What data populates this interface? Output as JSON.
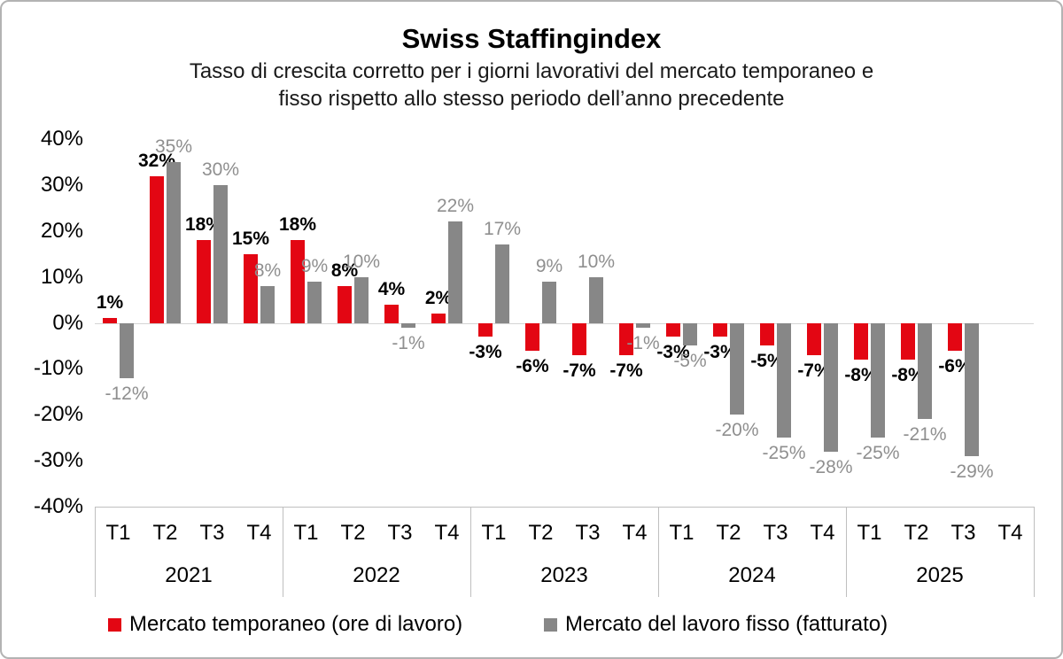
{
  "title": "Swiss Staffingindex",
  "subtitle_lines": [
    "Tasso di crescita corretto per i giorni lavorativi del mercato temporaneo e",
    "fisso rispetto allo stesso periodo dell’anno precedente"
  ],
  "chart_data": {
    "type": "bar",
    "title": "Swiss Staffingindex",
    "subtitle": "Tasso di crescita corretto per i giorni lavorativi del mercato temporaneo e fisso rispetto allo stesso periodo dell’anno precedente",
    "ylim": [
      -40,
      40
    ],
    "ytick_step": 10,
    "yticks": [
      "40%",
      "30%",
      "20%",
      "10%",
      "0%",
      "-10%",
      "-20%",
      "-30%",
      "-40%"
    ],
    "grid": false,
    "legend_position": "bottom",
    "groups": [
      {
        "year": "2021",
        "quarters": [
          "T1",
          "T2",
          "T3",
          "T4"
        ]
      },
      {
        "year": "2022",
        "quarters": [
          "T1",
          "T2",
          "T3",
          "T4"
        ]
      },
      {
        "year": "2023",
        "quarters": [
          "T1",
          "T2",
          "T3",
          "T4"
        ]
      },
      {
        "year": "2024",
        "quarters": [
          "T1",
          "T2",
          "T3",
          "T4"
        ]
      },
      {
        "year": "2025",
        "quarters": [
          "T1",
          "T2",
          "T3",
          "T4"
        ]
      }
    ],
    "series": [
      {
        "name": "Mercato temporaneo (ore di lavoro)",
        "color": "#e30613",
        "values": [
          1,
          32,
          18,
          15,
          18,
          8,
          4,
          2,
          -3,
          -6,
          -7,
          -7,
          -3,
          -3,
          -5,
          -7,
          -8,
          -8,
          -6,
          null
        ]
      },
      {
        "name": "Mercato del lavoro fisso (fatturato)",
        "color": "#878787",
        "values": [
          -12,
          35,
          30,
          8,
          9,
          10,
          -1,
          22,
          17,
          9,
          10,
          -1,
          -5,
          -20,
          -25,
          -28,
          -25,
          -21,
          -29,
          null
        ]
      }
    ]
  },
  "legend": {
    "items": [
      {
        "label": "Mercato temporaneo (ore di lavoro)",
        "color": "#e30613"
      },
      {
        "label": "Mercato del lavoro fisso (fatturato)",
        "color": "#878787"
      }
    ]
  }
}
